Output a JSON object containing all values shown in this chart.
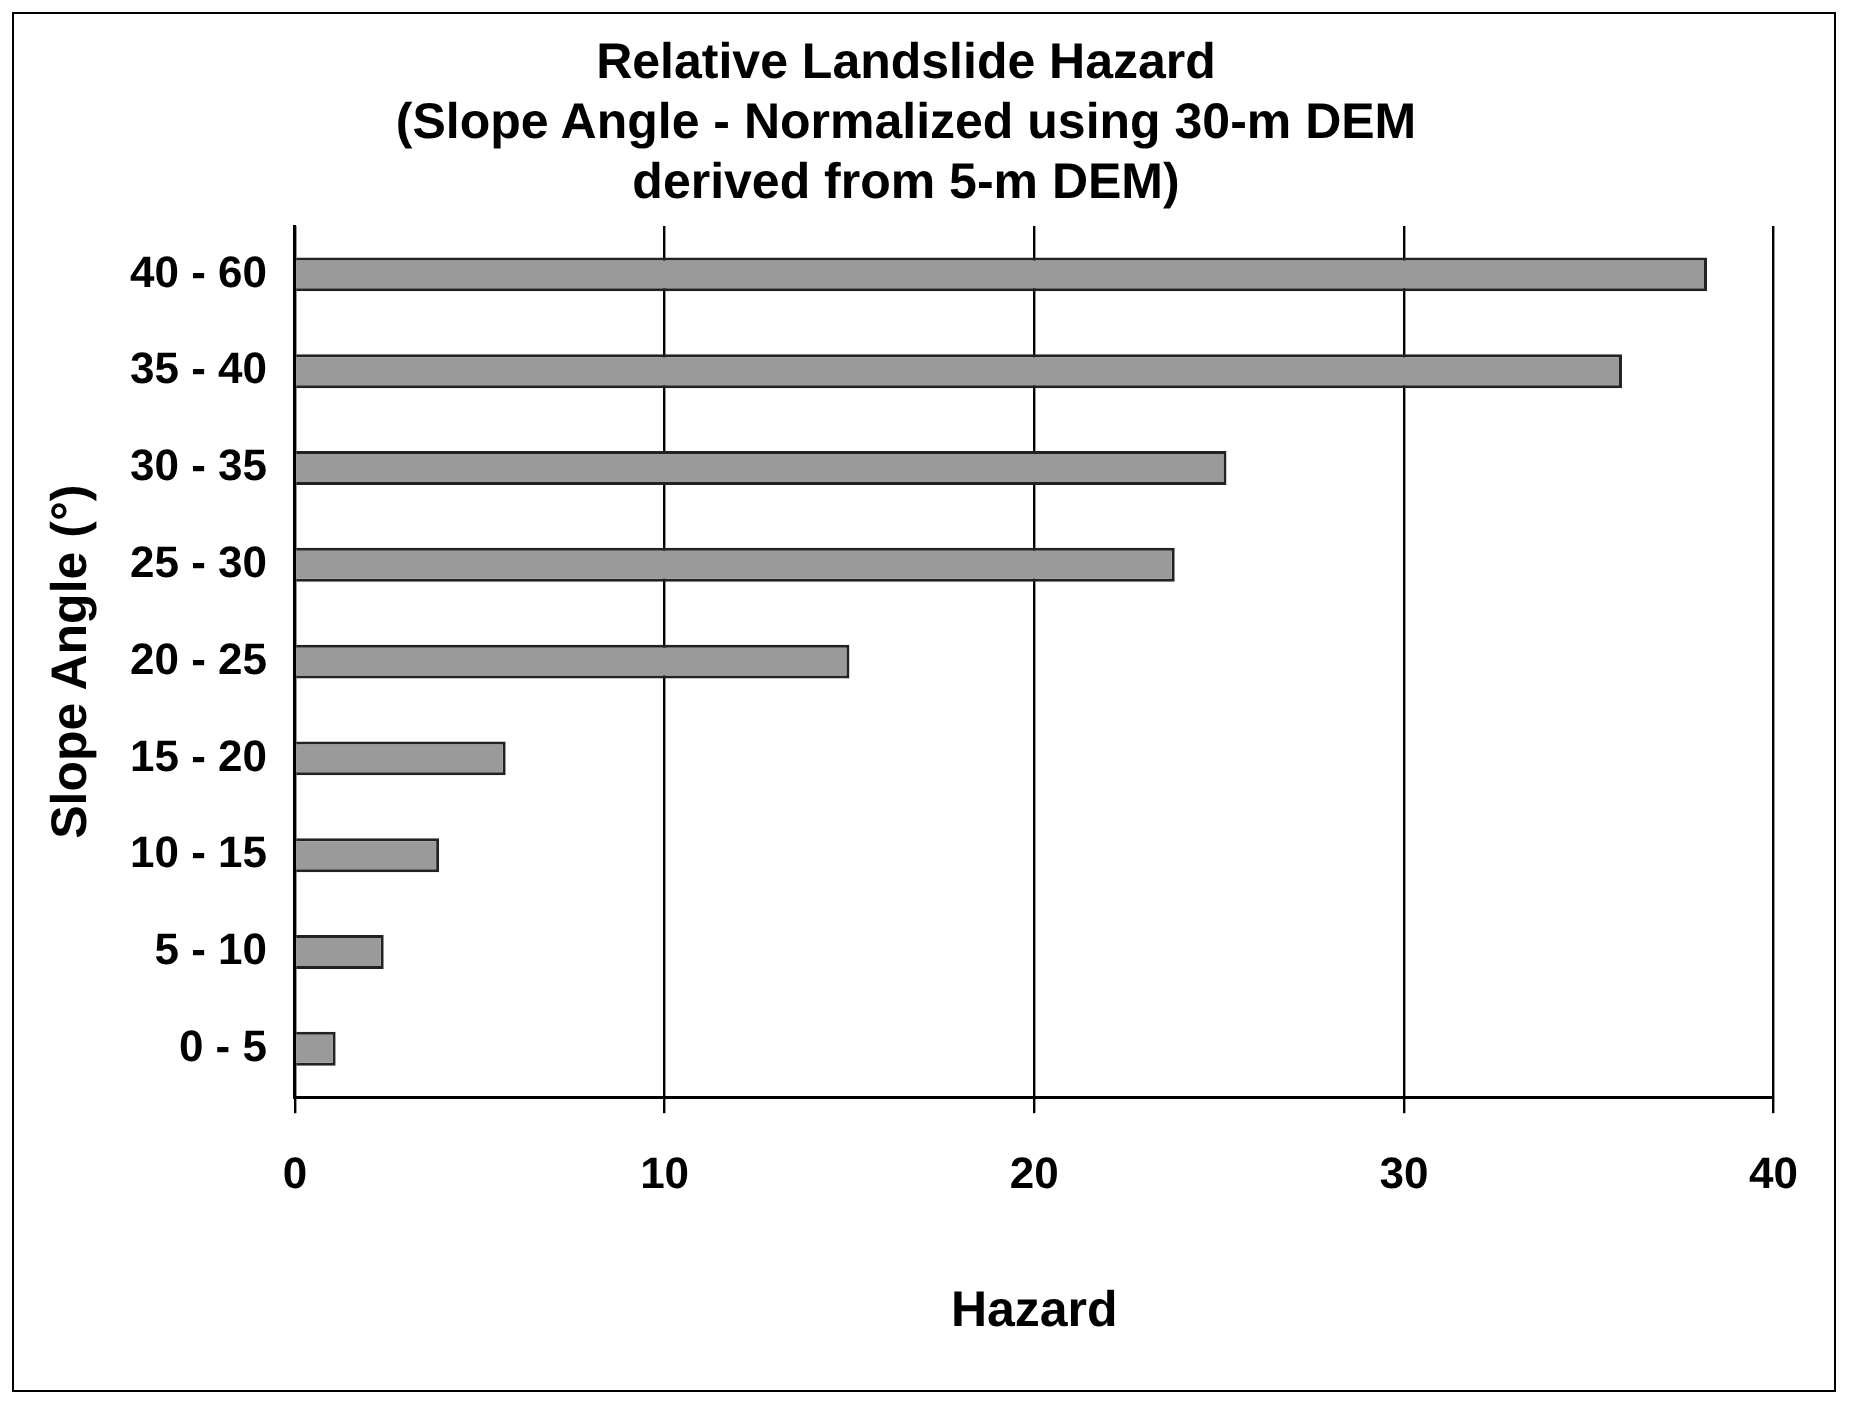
{
  "chart_data": {
    "type": "bar",
    "orientation": "horizontal",
    "title": [
      "Relative Landslide Hazard",
      "(Slope Angle - Normalized using 30-m DEM",
      "derived from 5-m DEM)"
    ],
    "xlabel": "Hazard",
    "ylabel": "Slope Angle (°)",
    "categories": [
      "40 - 60",
      "35 - 40",
      "30 - 35",
      "25 - 30",
      "20 - 25",
      "15 - 20",
      "10 - 15",
      "5 - 10",
      "0 - 5"
    ],
    "values": [
      38.2,
      35.9,
      25.2,
      23.8,
      15.0,
      5.7,
      3.9,
      2.4,
      1.1
    ],
    "color": "#9a9a9a",
    "xlim": [
      0,
      40
    ],
    "xticks": [
      0,
      10,
      20,
      30,
      40
    ],
    "grid": "x",
    "legend": false
  }
}
